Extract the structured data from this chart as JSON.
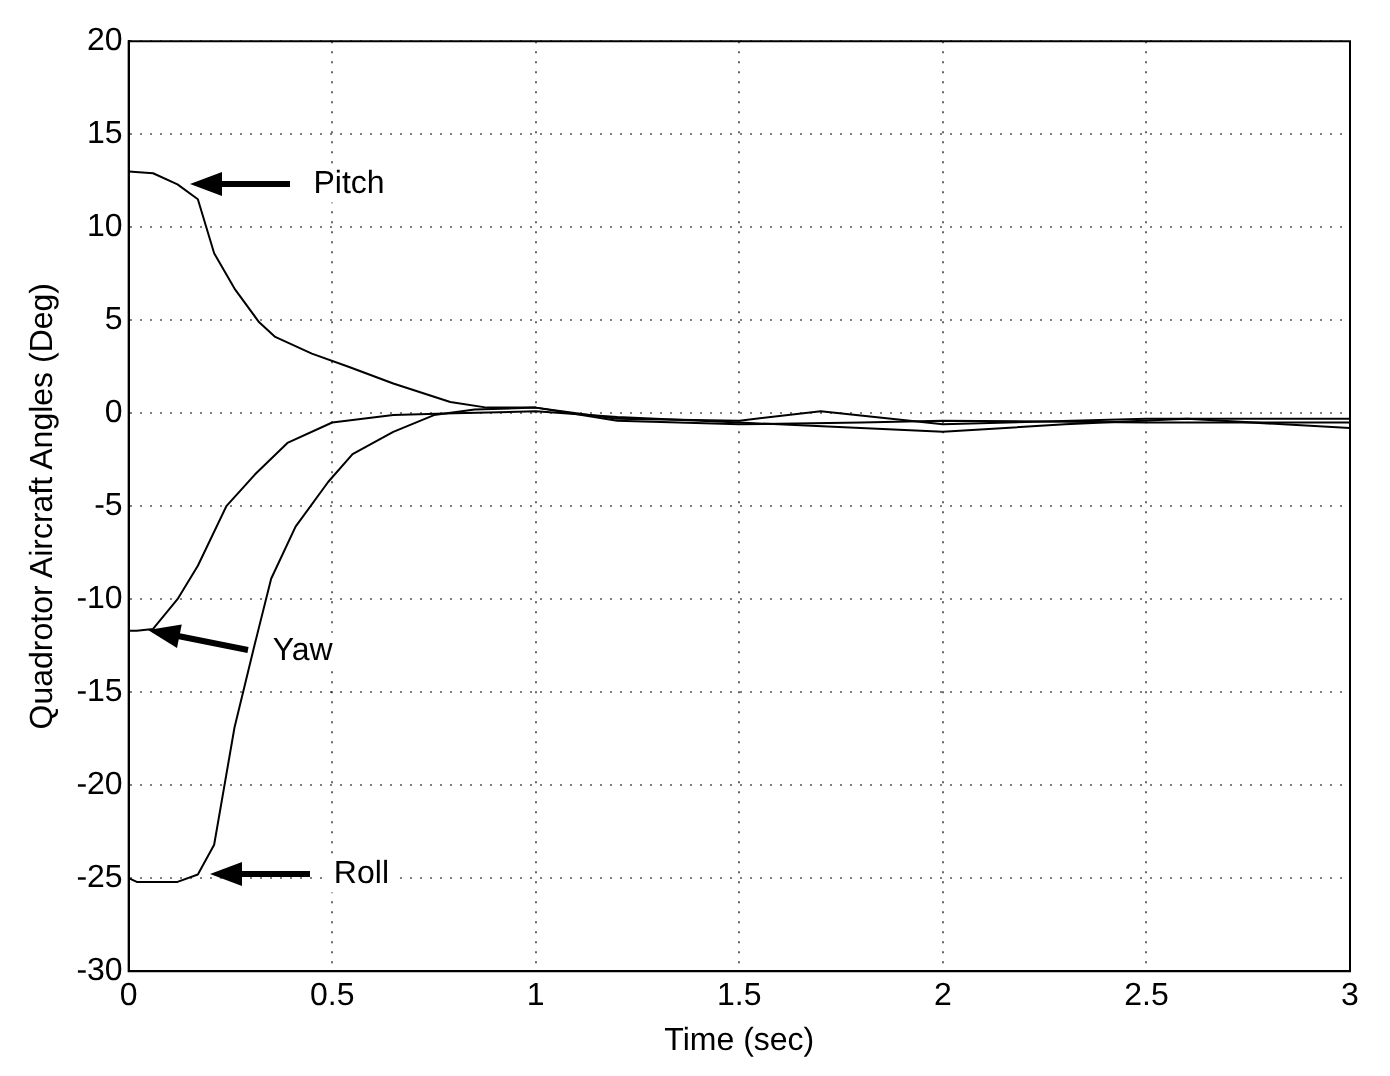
{
  "chart_data": {
    "type": "line",
    "xlabel": "Time (sec)",
    "ylabel": "Quadrotor Aircraft Angles (Deg)",
    "xlim": [
      0,
      3
    ],
    "xticks": [
      0,
      0.5,
      1,
      1.5,
      2,
      2.5,
      3
    ],
    "ylim": [
      -30,
      20
    ],
    "yticks": [
      -30,
      -25,
      -20,
      -15,
      -10,
      -5,
      0,
      5,
      10,
      15,
      20
    ],
    "grid": true,
    "legend": false,
    "marker": "none",
    "line_style": "solid",
    "series": [
      {
        "color": "#000000",
        "x": [
          0,
          0.06,
          0.12,
          0.17,
          0.21,
          0.26,
          0.32,
          0.36,
          0.45,
          0.54,
          0.65,
          0.79,
          0.88,
          1.0,
          1.2,
          1.5,
          1.7,
          2.0,
          2.5,
          3.0
        ],
        "values": [
          13,
          12.9,
          12.3,
          11.5,
          8.6,
          6.7,
          4.9,
          4.1,
          3.2,
          2.5,
          1.6,
          0.6,
          0.3,
          0.3,
          -0.3,
          -0.4,
          0.1,
          -0.6,
          -0.3,
          -0.3
        ]
      },
      {
        "color": "#000000",
        "x": [
          0,
          0.02,
          0.06,
          0.12,
          0.17,
          0.24,
          0.31,
          0.39,
          0.5,
          0.65,
          0.8,
          1.0,
          1.2,
          1.5,
          2.0,
          2.3,
          2.6,
          3.0
        ],
        "values": [
          -11.7,
          -11.7,
          -11.6,
          -10,
          -8.2,
          -5,
          -3.3,
          -1.6,
          -0.5,
          -0.1,
          0,
          0.1,
          -0.2,
          -0.5,
          -1,
          -0.6,
          -0.3,
          -0.8
        ]
      },
      {
        "color": "#000000",
        "x": [
          0,
          0.02,
          0.12,
          0.17,
          0.21,
          0.26,
          0.31,
          0.35,
          0.41,
          0.49,
          0.55,
          0.65,
          0.75,
          0.85,
          1.0,
          1.2,
          1.5,
          1.8,
          2.0,
          2.5,
          3.0
        ],
        "values": [
          -25,
          -25.2,
          -25.2,
          -24.8,
          -23.2,
          -16.9,
          -12.4,
          -8.9,
          -6.1,
          -3.7,
          -2.2,
          -1,
          -0.1,
          0.2,
          0.3,
          -0.4,
          -0.6,
          -0.5,
          -0.4,
          -0.5,
          -0.5
        ]
      }
    ],
    "annotations": [
      "Pitch",
      "Yaw",
      "Roll"
    ]
  }
}
